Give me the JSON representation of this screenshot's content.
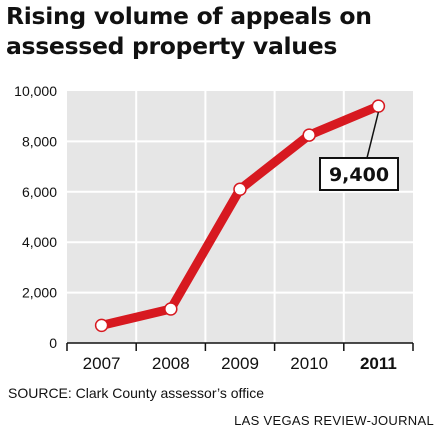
{
  "chart_data": {
    "type": "line",
    "title": "Rising volume of appeals on assessed property values",
    "categories": [
      "2007",
      "2008",
      "2009",
      "2010",
      "2011"
    ],
    "series": [
      {
        "values": [
          700,
          1350,
          6100,
          8250,
          9400
        ]
      }
    ],
    "ylim": [
      0,
      10000
    ],
    "yticks": [
      "0",
      "2,000",
      "4,000",
      "6,000",
      "8,000",
      "10,000"
    ],
    "grid": true,
    "callout": "9,400",
    "highlight_category": "2011",
    "source": "SOURCE: Clark County assessor’s office",
    "credit": "LAS VEGAS REVIEW-JOURNAL",
    "colors": {
      "line": "#d71920",
      "panel": "#e6e6e6",
      "grid": "#ffffff"
    }
  }
}
